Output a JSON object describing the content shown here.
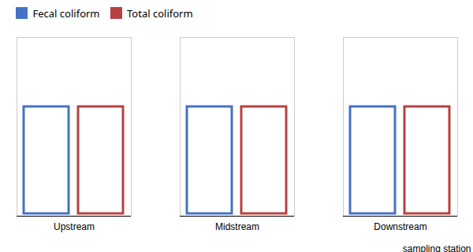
{
  "chart_data": {
    "type": "bar",
    "xlabel": "sampling station",
    "categories": [
      "Upstream",
      "Midstream",
      "Downstream"
    ],
    "series": [
      {
        "name": "Fecal coliform",
        "color": "#4472C4",
        "values": [
          1.0,
          1.0,
          1.0
        ]
      },
      {
        "name": "Total coliform",
        "color": "#B94040",
        "values": [
          1.0,
          1.0,
          1.0
        ]
      }
    ],
    "ylim": [
      0,
      1.6
    ],
    "yticks": [],
    "tick_labels": "x",
    "legend": "upper left",
    "grid": false
  }
}
